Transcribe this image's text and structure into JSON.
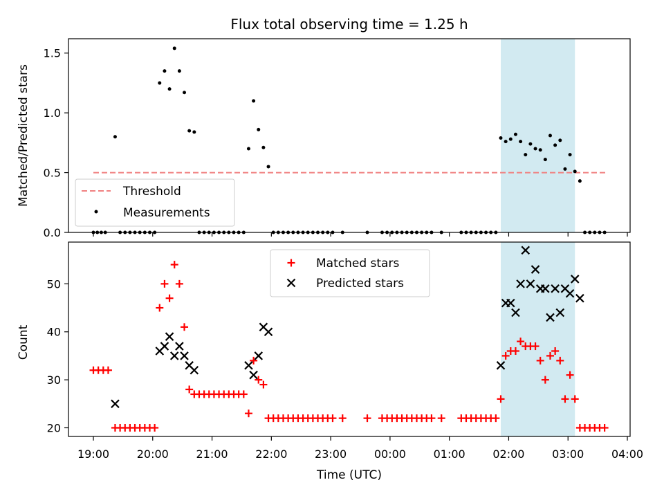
{
  "figure": {
    "title": "Flux total observing time = 1.25 h",
    "xlabel": "Time (UTC)"
  },
  "x_ticks": [
    "19:00",
    "20:00",
    "21:00",
    "22:00",
    "23:00",
    "00:00",
    "01:00",
    "02:00",
    "03:00",
    "04:00"
  ],
  "colors": {
    "threshold": "#f08080",
    "measurement": "#000000",
    "matched": "#ff0000",
    "predicted": "#000000",
    "shade": "#add8e6"
  },
  "chart_data": [
    {
      "type": "scatter",
      "ylabel": "Matched/Predicted stars",
      "ylim": [
        0,
        1.62
      ],
      "yticks": [
        "0.0",
        "0.5",
        "1.0",
        "1.5"
      ],
      "shaded_span": [
        "01:52",
        "03:07"
      ],
      "legend": {
        "placement": "lower-left",
        "entries": [
          "Threshold",
          "Measurements"
        ]
      },
      "threshold": {
        "name": "Threshold",
        "y": 0.5,
        "x_range": [
          "19:00",
          "03:40"
        ]
      },
      "series": [
        {
          "name": "Measurements",
          "x": [
            "19:00",
            "19:04",
            "19:08",
            "19:12",
            "19:22",
            "19:27",
            "19:32",
            "19:37",
            "19:42",
            "19:47",
            "19:52",
            "19:57",
            "20:02",
            "20:07",
            "20:12",
            "20:17",
            "20:22",
            "20:27",
            "20:32",
            "20:37",
            "20:42",
            "20:47",
            "20:52",
            "20:57",
            "21:02",
            "21:07",
            "21:12",
            "21:17",
            "21:22",
            "21:27",
            "21:32",
            "21:37",
            "21:42",
            "21:47",
            "21:52",
            "21:57",
            "22:02",
            "22:07",
            "22:12",
            "22:17",
            "22:22",
            "22:27",
            "22:32",
            "22:37",
            "22:42",
            "22:47",
            "22:52",
            "22:57",
            "23:02",
            "23:12",
            "23:37",
            "23:52",
            "23:57",
            "00:02",
            "00:07",
            "00:12",
            "00:17",
            "00:22",
            "00:27",
            "00:32",
            "00:37",
            "00:42",
            "00:52",
            "01:12",
            "01:17",
            "01:22",
            "01:27",
            "01:32",
            "01:37",
            "01:42",
            "01:47",
            "01:52",
            "01:57",
            "02:02",
            "02:07",
            "02:12",
            "02:17",
            "02:22",
            "02:27",
            "02:32",
            "02:37",
            "02:42",
            "02:47",
            "02:52",
            "02:57",
            "03:02",
            "03:07",
            "03:12",
            "03:17",
            "03:22",
            "03:27",
            "03:32",
            "03:37"
          ],
          "y": [
            0,
            0,
            0,
            0,
            0.8,
            0,
            0,
            0,
            0,
            0,
            0,
            0,
            0,
            1.25,
            1.35,
            1.2,
            1.54,
            1.35,
            1.17,
            0.85,
            0.84,
            0,
            0,
            0,
            0,
            0,
            0,
            0,
            0,
            0,
            0,
            0.7,
            1.1,
            0.86,
            0.71,
            0.55,
            0,
            0,
            0,
            0,
            0,
            0,
            0,
            0,
            0,
            0,
            0,
            0,
            0,
            0,
            0,
            0,
            0,
            0,
            0,
            0,
            0,
            0,
            0,
            0,
            0,
            0,
            0,
            0,
            0,
            0,
            0,
            0,
            0,
            0,
            0,
            0.79,
            0.76,
            0.78,
            0.82,
            0.76,
            0.65,
            0.74,
            0.7,
            0.69,
            0.61,
            0.81,
            0.73,
            0.77,
            0.53,
            0.65,
            0.51,
            0.43,
            0,
            0,
            0,
            0,
            0
          ]
        }
      ]
    },
    {
      "type": "scatter",
      "ylabel": "Count",
      "ylim": [
        18.2,
        58.7
      ],
      "yticks": [
        "20",
        "30",
        "40",
        "50"
      ],
      "shaded_span": [
        "01:52",
        "03:07"
      ],
      "legend": {
        "placement": "upper-center",
        "entries": [
          "Matched stars",
          "Predicted stars"
        ]
      },
      "series": [
        {
          "name": "Matched stars",
          "marker": "plus",
          "x": [
            "19:00",
            "19:05",
            "19:10",
            "19:15",
            "19:22",
            "19:27",
            "19:32",
            "19:37",
            "19:42",
            "19:47",
            "19:52",
            "19:57",
            "20:02",
            "20:07",
            "20:12",
            "20:17",
            "20:22",
            "20:27",
            "20:32",
            "20:37",
            "20:42",
            "20:47",
            "20:52",
            "20:57",
            "21:02",
            "21:07",
            "21:12",
            "21:17",
            "21:22",
            "21:27",
            "21:32",
            "21:37",
            "21:42",
            "21:47",
            "21:52",
            "21:57",
            "22:02",
            "22:07",
            "22:12",
            "22:17",
            "22:22",
            "22:27",
            "22:32",
            "22:37",
            "22:42",
            "22:47",
            "22:52",
            "22:57",
            "23:02",
            "23:12",
            "23:37",
            "23:52",
            "23:57",
            "00:02",
            "00:07",
            "00:12",
            "00:17",
            "00:22",
            "00:27",
            "00:32",
            "00:37",
            "00:42",
            "00:52",
            "01:12",
            "01:17",
            "01:22",
            "01:27",
            "01:32",
            "01:37",
            "01:42",
            "01:47",
            "01:52",
            "01:57",
            "02:02",
            "02:07",
            "02:12",
            "02:17",
            "02:22",
            "02:27",
            "02:32",
            "02:37",
            "02:42",
            "02:47",
            "02:52",
            "02:57",
            "03:02",
            "03:07",
            "03:12",
            "03:17",
            "03:22",
            "03:27",
            "03:32",
            "03:37"
          ],
          "y": [
            32,
            32,
            32,
            32,
            20,
            20,
            20,
            20,
            20,
            20,
            20,
            20,
            20,
            45,
            50,
            47,
            54,
            50,
            41,
            28,
            27,
            27,
            27,
            27,
            27,
            27,
            27,
            27,
            27,
            27,
            27,
            23,
            34,
            30,
            29,
            22,
            22,
            22,
            22,
            22,
            22,
            22,
            22,
            22,
            22,
            22,
            22,
            22,
            22,
            22,
            22,
            22,
            22,
            22,
            22,
            22,
            22,
            22,
            22,
            22,
            22,
            22,
            22,
            22,
            22,
            22,
            22,
            22,
            22,
            22,
            22,
            26,
            35,
            36,
            36,
            38,
            37,
            37,
            37,
            34,
            30,
            35,
            36,
            34,
            26,
            31,
            26,
            20,
            20,
            20,
            20,
            20,
            20
          ]
        },
        {
          "name": "Predicted stars",
          "marker": "x",
          "x": [
            "19:22",
            "20:07",
            "20:12",
            "20:17",
            "20:22",
            "20:27",
            "20:32",
            "20:37",
            "20:42",
            "21:37",
            "21:42",
            "21:47",
            "21:52",
            "21:57",
            "01:52",
            "01:57",
            "02:02",
            "02:07",
            "02:12",
            "02:17",
            "02:22",
            "02:27",
            "02:32",
            "02:37",
            "02:42",
            "02:47",
            "02:52",
            "02:57",
            "03:02",
            "03:07",
            "03:12"
          ],
          "y": [
            25,
            36,
            37,
            39,
            35,
            37,
            35,
            33,
            32,
            33,
            31,
            35,
            41,
            40,
            33,
            46,
            46,
            44,
            50,
            57,
            50,
            53,
            49,
            49,
            43,
            49,
            44,
            49,
            48,
            51,
            47
          ]
        }
      ]
    }
  ]
}
